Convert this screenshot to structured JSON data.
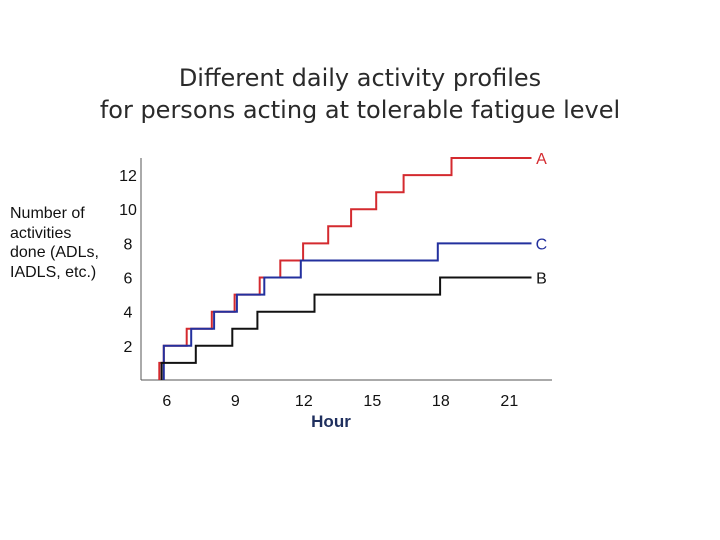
{
  "title_lines": [
    "Different daily activity profiles",
    "for persons acting at tolerable fatigue level"
  ],
  "colors": {
    "A": "#d42a2f",
    "B": "#111111",
    "C": "#23309e",
    "xlabel": "#1f2f5e",
    "axis": "#555555"
  },
  "chart_data": {
    "type": "line",
    "step": true,
    "title": "Different daily activity profiles for persons acting at tolerable fatigue level",
    "xlabel": "Hour",
    "ylabel_lines": [
      "Number of",
      "activities",
      "done (ADLs,",
      "IADLS, etc.)"
    ],
    "xlim": [
      5,
      23
    ],
    "ylim": [
      0,
      13
    ],
    "xticks": [
      6,
      9,
      12,
      15,
      18,
      21
    ],
    "yticks": [
      2,
      4,
      6,
      8,
      10,
      12
    ],
    "series": [
      {
        "name": "A",
        "color": "#d42a2f",
        "points": [
          [
            5.8,
            0
          ],
          [
            5.8,
            1
          ],
          [
            6.0,
            1
          ],
          [
            6.0,
            2
          ],
          [
            7.0,
            2
          ],
          [
            7.0,
            3
          ],
          [
            8.1,
            3
          ],
          [
            8.1,
            4
          ],
          [
            9.1,
            4
          ],
          [
            9.1,
            5
          ],
          [
            10.2,
            5
          ],
          [
            10.2,
            6
          ],
          [
            11.1,
            6
          ],
          [
            11.1,
            7
          ],
          [
            12.1,
            7
          ],
          [
            12.1,
            8
          ],
          [
            13.2,
            8
          ],
          [
            13.2,
            9
          ],
          [
            14.2,
            9
          ],
          [
            14.2,
            10
          ],
          [
            15.3,
            10
          ],
          [
            15.3,
            11
          ],
          [
            16.5,
            11
          ],
          [
            16.5,
            12
          ],
          [
            18.6,
            12
          ],
          [
            18.6,
            13
          ],
          [
            22.1,
            13
          ]
        ]
      },
      {
        "name": "C",
        "color": "#23309e",
        "points": [
          [
            6.0,
            0
          ],
          [
            6.0,
            2
          ],
          [
            7.2,
            2
          ],
          [
            7.2,
            3
          ],
          [
            8.2,
            3
          ],
          [
            8.2,
            4
          ],
          [
            9.2,
            4
          ],
          [
            9.2,
            5
          ],
          [
            10.4,
            5
          ],
          [
            10.4,
            6
          ],
          [
            12.0,
            6
          ],
          [
            12.0,
            7
          ],
          [
            18.0,
            7
          ],
          [
            18.0,
            8
          ],
          [
            22.1,
            8
          ]
        ]
      },
      {
        "name": "B",
        "color": "#111111",
        "points": [
          [
            5.9,
            0
          ],
          [
            5.9,
            1
          ],
          [
            7.4,
            1
          ],
          [
            7.4,
            2
          ],
          [
            9.0,
            2
          ],
          [
            9.0,
            3
          ],
          [
            10.1,
            3
          ],
          [
            10.1,
            4
          ],
          [
            12.6,
            4
          ],
          [
            12.6,
            5
          ],
          [
            18.1,
            5
          ],
          [
            18.1,
            6
          ],
          [
            22.1,
            6
          ]
        ]
      }
    ],
    "series_labels": {
      "A": "A",
      "B": "B",
      "C": "C"
    }
  }
}
